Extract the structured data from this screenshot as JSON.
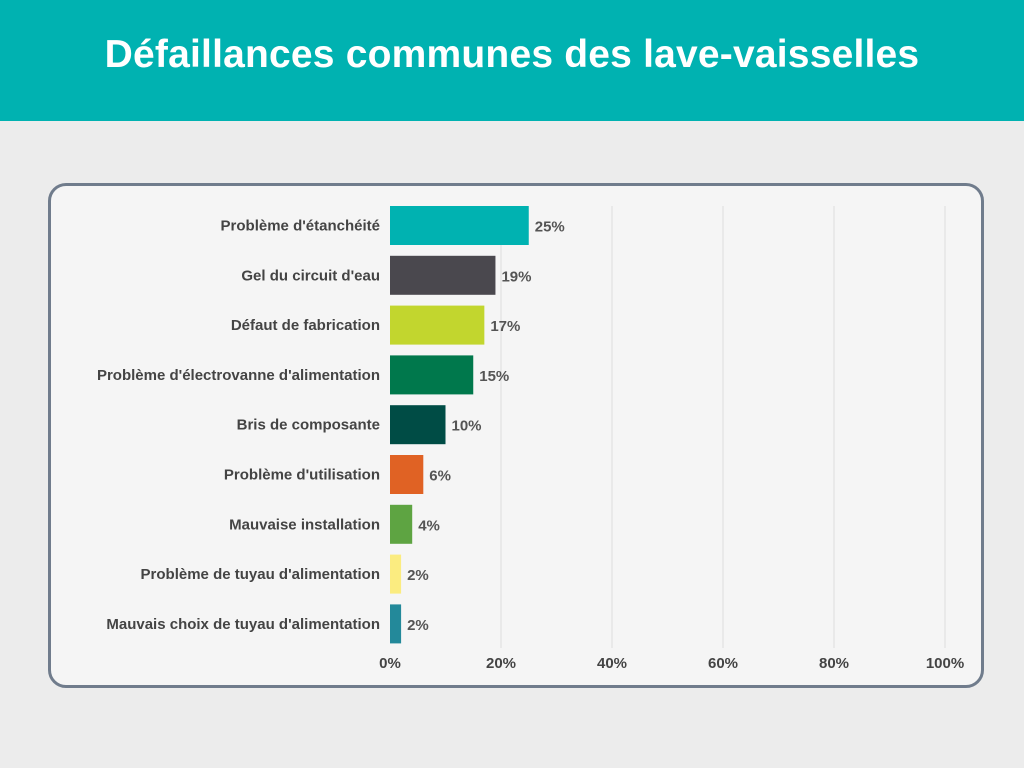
{
  "header": {
    "title": "Défaillances communes des lave-vaisselles"
  },
  "chart_data": {
    "type": "bar",
    "orientation": "horizontal",
    "categories": [
      "Problème d'étanchéité",
      "Gel du circuit d'eau",
      "Défaut de fabrication",
      "Problème d'électrovanne d'alimentation",
      "Bris de composante",
      "Problème d'utilisation",
      "Mauvaise installation",
      "Problème de tuyau d'alimentation",
      "Mauvais choix de tuyau d'alimentation"
    ],
    "values": [
      25,
      19,
      17,
      15,
      10,
      6,
      4,
      2,
      2
    ],
    "value_labels": [
      "25%",
      "19%",
      "17%",
      "15%",
      "10%",
      "6%",
      "4%",
      "2%",
      "2%"
    ],
    "colors": [
      "#00b2b1",
      "#4a484e",
      "#c2d62e",
      "#00784c",
      "#004c45",
      "#e06224",
      "#5ea442",
      "#fbec80",
      "#23899a"
    ],
    "xlim": [
      0,
      100
    ],
    "xticks": [
      0,
      20,
      40,
      60,
      80,
      100
    ],
    "xtick_labels": [
      "0%",
      "20%",
      "40%",
      "60%",
      "80%",
      "100%"
    ],
    "grid": true,
    "title": "",
    "xlabel": "",
    "ylabel": ""
  }
}
